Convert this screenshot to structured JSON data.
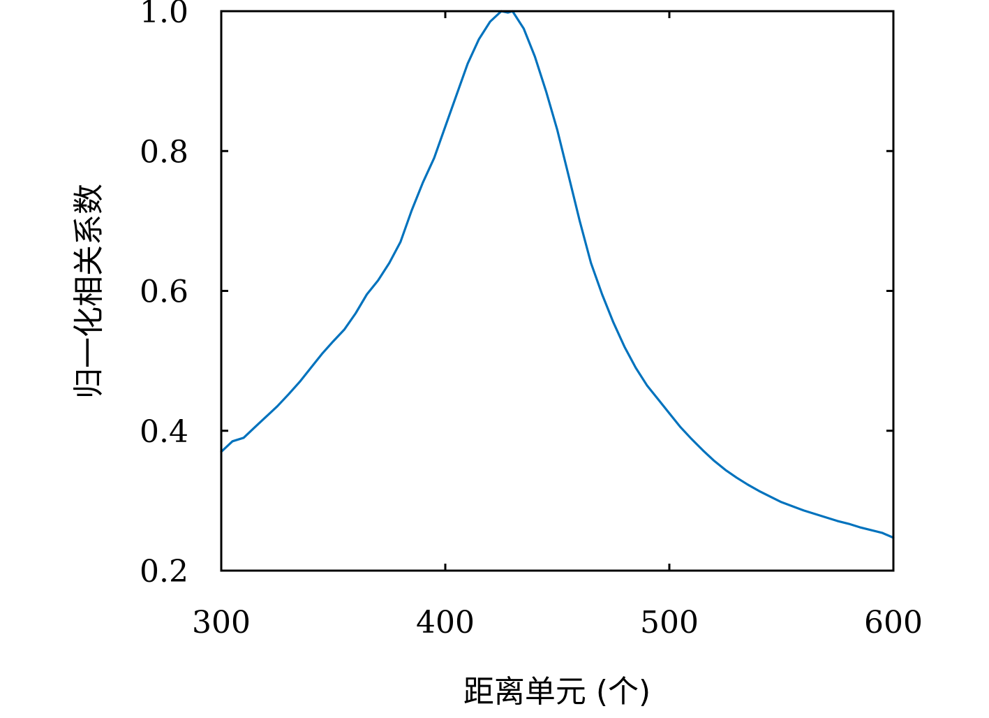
{
  "chart_data": {
    "type": "line",
    "xlabel": "距离单元 (个)",
    "ylabel": "归一化相关系数",
    "xlim": [
      300,
      600
    ],
    "ylim": [
      0.2,
      1.0
    ],
    "xticks": [
      300,
      400,
      500,
      600
    ],
    "xtick_labels": [
      "300",
      "400",
      "500",
      "600"
    ],
    "yticks": [
      0.2,
      0.4,
      0.6,
      0.8,
      1.0
    ],
    "ytick_labels": [
      "0.2",
      "0.4",
      "0.6",
      "0.8",
      "1.0"
    ],
    "grid": false,
    "line_color": "#0072bd",
    "series": [
      {
        "x": [
          300,
          305,
          310,
          315,
          320,
          325,
          330,
          335,
          340,
          345,
          350,
          355,
          360,
          365,
          370,
          375,
          380,
          385,
          390,
          395,
          400,
          405,
          410,
          415,
          420,
          425,
          428,
          430,
          435,
          440,
          445,
          450,
          455,
          460,
          465,
          470,
          475,
          480,
          485,
          490,
          495,
          500,
          505,
          510,
          515,
          520,
          525,
          530,
          535,
          540,
          545,
          550,
          555,
          560,
          565,
          570,
          575,
          580,
          585,
          590,
          595,
          600
        ],
        "values": [
          0.37,
          0.385,
          0.39,
          0.405,
          0.42,
          0.435,
          0.452,
          0.47,
          0.49,
          0.51,
          0.528,
          0.545,
          0.568,
          0.595,
          0.615,
          0.64,
          0.67,
          0.715,
          0.755,
          0.79,
          0.835,
          0.88,
          0.925,
          0.96,
          0.985,
          1.0,
          0.998,
          1.0,
          0.975,
          0.935,
          0.885,
          0.83,
          0.765,
          0.7,
          0.64,
          0.595,
          0.555,
          0.52,
          0.49,
          0.465,
          0.445,
          0.425,
          0.405,
          0.388,
          0.372,
          0.357,
          0.344,
          0.333,
          0.323,
          0.314,
          0.306,
          0.298,
          0.292,
          0.286,
          0.281,
          0.276,
          0.271,
          0.267,
          0.262,
          0.258,
          0.254,
          0.247
        ]
      }
    ]
  }
}
